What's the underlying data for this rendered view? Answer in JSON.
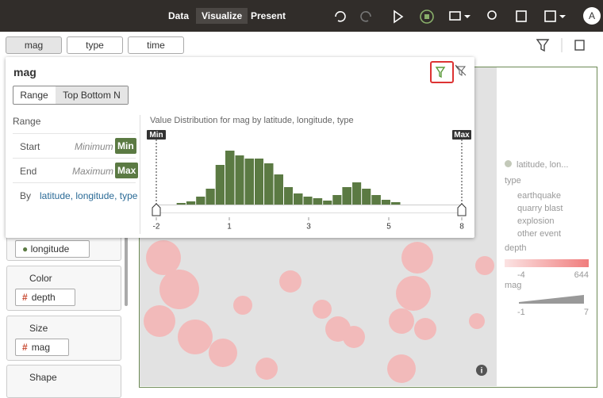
{
  "toolbar": {
    "tabs": [
      "Data",
      "Visualize",
      "Present"
    ],
    "avatar": "A"
  },
  "filters": [
    "mag",
    "type",
    "time"
  ],
  "filter_panel": {
    "title": "mag",
    "tabs": [
      "Range",
      "Top Bottom N"
    ],
    "section": "Range",
    "start": {
      "label": "Start",
      "placeholder": "Minimum",
      "button": "Min"
    },
    "end": {
      "label": "End",
      "placeholder": "Maximum",
      "button": "Max"
    },
    "by": {
      "label": "By",
      "value": "latitude, longitude, type"
    }
  },
  "chart_data": {
    "type": "histogram",
    "title": "Value Distribution for mag by latitude, longitude, type",
    "bins": [
      -1.18,
      -0.78,
      -0.38,
      0.02,
      0.42,
      0.82,
      1.14,
      1.38,
      1.63,
      1.87,
      2.12,
      2.37,
      2.61,
      2.86,
      3.1,
      3.35,
      3.59,
      3.83,
      4.08,
      4.32,
      4.56,
      4.81,
      5.08,
      5.49
    ],
    "values": [
      2,
      4,
      10,
      20,
      50,
      68,
      62,
      58,
      58,
      52,
      38,
      22,
      14,
      10,
      8,
      5,
      12,
      22,
      28,
      20,
      12,
      6,
      3
    ],
    "color": "#5b7a43",
    "xlim": [
      -2,
      8
    ],
    "xticks": [
      -2,
      1,
      3,
      5,
      8
    ],
    "handles": [
      "Min",
      "Max"
    ]
  },
  "grammar": {
    "field": "longitude",
    "sections": [
      {
        "label": "Color",
        "item": "depth"
      },
      {
        "label": "Size",
        "item": "mag"
      },
      {
        "label": "Shape"
      }
    ]
  },
  "legend": {
    "series": "latitude, lon...",
    "type_title": "type",
    "types": [
      "earthquake",
      "quarry blast",
      "explosion",
      "other event"
    ],
    "depth_title": "depth",
    "depth_range": [
      -4,
      644
    ],
    "mag_title": "mag",
    "mag_range": [
      -1,
      7
    ]
  }
}
